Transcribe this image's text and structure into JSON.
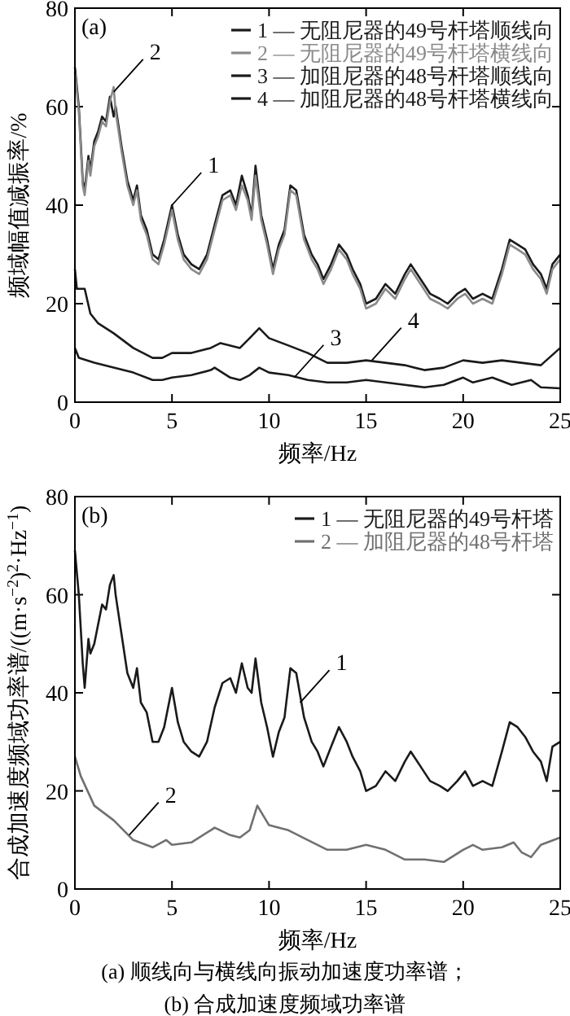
{
  "chart_data": [
    {
      "type": "line",
      "title": "(a)",
      "xlabel": "频率/Hz",
      "ylabel": "频域幅值减振率/%",
      "xlim": [
        0,
        25
      ],
      "xticks": [
        0,
        5,
        10,
        15,
        20,
        25
      ],
      "ylim": [
        0,
        80
      ],
      "yticks": [
        0,
        20,
        40,
        60,
        80
      ],
      "legend": "top right",
      "series": [
        {
          "name": "1 — 无阻尼器的49号杆塔顺线向",
          "color": "#1a1a1a",
          "x": [
            0,
            0.2,
            0.4,
            0.5,
            0.7,
            0.8,
            1.0,
            1.2,
            1.4,
            1.6,
            1.8,
            2.0,
            2.1,
            2.4,
            2.7,
            3.0,
            3.2,
            3.4,
            3.7,
            4.0,
            4.3,
            4.6,
            5.0,
            5.3,
            5.6,
            6.0,
            6.4,
            6.8,
            7.2,
            7.6,
            8.0,
            8.3,
            8.6,
            8.9,
            9.1,
            9.3,
            9.6,
            9.9,
            10.2,
            10.5,
            10.8,
            11.1,
            11.4,
            11.8,
            12.2,
            12.5,
            12.8,
            13.2,
            13.6,
            14.0,
            14.3,
            14.7,
            15.0,
            15.5,
            16.0,
            16.5,
            17.0,
            17.3,
            17.8,
            18.3,
            18.8,
            19.2,
            19.7,
            20.1,
            20.5,
            21.0,
            21.5,
            22.0,
            22.4,
            22.8,
            23.2,
            23.6,
            24.0,
            24.3,
            24.6,
            25.0
          ],
          "values": [
            68,
            60,
            45,
            43,
            50,
            47,
            53,
            55,
            58,
            57,
            62,
            58,
            60,
            52,
            45,
            41,
            44,
            38,
            35,
            30,
            29,
            33,
            40,
            34,
            30,
            28,
            27,
            30,
            36,
            42,
            43,
            40,
            46,
            42,
            38,
            48,
            38,
            33,
            27,
            32,
            35,
            44,
            43,
            34,
            30,
            28,
            25,
            28,
            32,
            30,
            27,
            24,
            20,
            21,
            24,
            22,
            26,
            28,
            25,
            22,
            21,
            20,
            22,
            23,
            21,
            22,
            21,
            27,
            33,
            32,
            31,
            28,
            26,
            23,
            28,
            30
          ]
        },
        {
          "name": "2 — 无阻尼器的49号杆塔横线向",
          "color": "#8a8a8a",
          "x": [
            0,
            0.2,
            0.4,
            0.5,
            0.7,
            0.8,
            1.0,
            1.2,
            1.4,
            1.6,
            1.8,
            2.0,
            2.1,
            2.4,
            2.7,
            3.0,
            3.2,
            3.4,
            3.7,
            4.0,
            4.3,
            4.6,
            5.0,
            5.3,
            5.6,
            6.0,
            6.4,
            6.8,
            7.2,
            7.6,
            8.0,
            8.3,
            8.6,
            8.9,
            9.1,
            9.3,
            9.6,
            9.9,
            10.2,
            10.5,
            10.8,
            11.1,
            11.4,
            11.8,
            12.2,
            12.5,
            12.8,
            13.2,
            13.6,
            14.0,
            14.3,
            14.7,
            15.0,
            15.5,
            16.0,
            16.5,
            17.0,
            17.3,
            17.8,
            18.3,
            18.8,
            19.2,
            19.7,
            20.1,
            20.5,
            21.0,
            21.5,
            22.0,
            22.4,
            22.8,
            23.2,
            23.6,
            24.0,
            24.3,
            24.6,
            25.0
          ],
          "values": [
            67,
            59,
            44,
            42,
            49,
            46,
            52,
            54,
            57,
            56,
            61,
            64,
            59,
            51,
            44,
            40,
            43,
            37,
            34,
            29,
            28,
            32,
            39,
            33,
            29,
            27,
            26,
            29,
            35,
            41,
            42,
            39,
            44,
            41,
            37,
            46,
            37,
            32,
            26,
            31,
            34,
            43,
            42,
            33,
            29,
            27,
            24,
            27,
            31,
            29,
            26,
            23,
            19,
            20,
            23,
            21,
            25,
            27,
            24,
            21,
            20,
            19,
            21,
            22,
            20,
            21,
            20,
            26,
            32,
            31,
            30,
            27,
            25,
            22,
            27,
            29
          ]
        },
        {
          "name": "3 — 加阻尼器的48号杆塔顺线向",
          "color": "#1a1a1a",
          "x": [
            0,
            0.2,
            1,
            2,
            3,
            4,
            4.5,
            5,
            6,
            7,
            7.2,
            8,
            8.5,
            9,
            9.5,
            10,
            11,
            12,
            13,
            14,
            15,
            16,
            17,
            18,
            19,
            20,
            20.5,
            21.5,
            22.5,
            23.5,
            24,
            25
          ],
          "values": [
            11,
            9,
            8,
            7,
            6,
            4.5,
            4.5,
            5,
            5.5,
            6.5,
            7,
            5,
            4.5,
            5.5,
            7,
            6,
            5.5,
            4.5,
            4,
            4,
            4.5,
            4,
            3.5,
            3,
            3.5,
            5,
            4,
            5,
            3.5,
            4.5,
            3,
            2.8
          ]
        },
        {
          "name": "4 — 加阻尼器的48号杆塔横线向",
          "color": "#1a1a1a",
          "x": [
            0,
            0.1,
            0.5,
            0.8,
            1.2,
            2,
            3,
            4,
            4.5,
            5,
            6,
            7,
            7.5,
            8,
            8.5,
            9,
            9.5,
            10,
            11,
            12,
            13,
            14,
            15,
            16,
            17,
            18,
            19,
            20,
            21,
            22,
            23,
            24,
            25
          ],
          "values": [
            27,
            23,
            23,
            18,
            16,
            14,
            11,
            9,
            9,
            10,
            10,
            11,
            12,
            11.5,
            11,
            13,
            15,
            13,
            11.5,
            10,
            8,
            8,
            8.5,
            8,
            7.5,
            6.5,
            7,
            8.5,
            8,
            8.5,
            8,
            7.5,
            11
          ]
        }
      ],
      "annotations": [
        {
          "text": "1",
          "x": 5.0,
          "y": 40
        },
        {
          "text": "2",
          "x": 2.0,
          "y": 63
        },
        {
          "text": "3",
          "x": 11.3,
          "y": 5
        },
        {
          "text": "4",
          "x": 15.3,
          "y": 8.5
        }
      ]
    },
    {
      "type": "line",
      "title": "(b)",
      "xlabel": "频率/Hz",
      "ylabel": "合成加速度频域功率谱/((m·s$^{−2}$)$^{2}$·Hz$^{−1}$)",
      "xlim": [
        0,
        25
      ],
      "xticks": [
        0,
        5,
        10,
        15,
        20,
        25
      ],
      "ylim": [
        0,
        80
      ],
      "yticks": [
        0,
        20,
        40,
        60,
        80
      ],
      "legend": "top right",
      "series": [
        {
          "name": "1 — 无阻尼器的49号杆塔",
          "color": "#1a1a1a",
          "x": [
            0,
            0.2,
            0.4,
            0.5,
            0.7,
            0.8,
            1.0,
            1.2,
            1.4,
            1.6,
            1.8,
            2.0,
            2.1,
            2.4,
            2.7,
            3.0,
            3.2,
            3.4,
            3.7,
            4.0,
            4.3,
            4.6,
            5.0,
            5.3,
            5.6,
            6.0,
            6.4,
            6.8,
            7.2,
            7.6,
            8.0,
            8.3,
            8.6,
            8.9,
            9.1,
            9.3,
            9.6,
            9.9,
            10.2,
            10.5,
            10.8,
            11.1,
            11.4,
            11.8,
            12.2,
            12.5,
            12.8,
            13.2,
            13.6,
            14.0,
            14.3,
            14.7,
            15.0,
            15.5,
            16.0,
            16.5,
            17.0,
            17.3,
            17.8,
            18.3,
            18.8,
            19.2,
            19.7,
            20.1,
            20.5,
            21.0,
            21.5,
            22.0,
            22.4,
            22.8,
            23.2,
            23.6,
            24.0,
            24.3,
            24.6,
            25.0
          ],
          "values": [
            69,
            60,
            46,
            41,
            51,
            48,
            50,
            54,
            58,
            57,
            62,
            64,
            60,
            52,
            44,
            41,
            45,
            38,
            36,
            30,
            30,
            33,
            41,
            34,
            30,
            28,
            27,
            30,
            37,
            42,
            43,
            40,
            46,
            41,
            40,
            47,
            38,
            33,
            27,
            32,
            35,
            45,
            44,
            35,
            30,
            28,
            25,
            29,
            33,
            30,
            27,
            24,
            20,
            21,
            24,
            22,
            26,
            28,
            25,
            22,
            21,
            20,
            22,
            24,
            21,
            22,
            21,
            28,
            34,
            33,
            31,
            28,
            26,
            22,
            29,
            30
          ]
        },
        {
          "name": "2 — 加阻尼器的48号杆塔",
          "color": "#707070",
          "x": [
            0,
            0.3,
            1,
            2,
            3,
            4,
            4.7,
            5,
            6,
            7,
            7.2,
            8,
            8.5,
            9,
            9.4,
            10,
            11,
            12,
            13,
            14,
            15,
            16,
            17,
            18,
            19,
            20,
            20.5,
            21,
            22,
            22.6,
            23,
            23.5,
            24,
            25
          ],
          "values": [
            27,
            23,
            17,
            14,
            10,
            8.5,
            10,
            9,
            9.5,
            12,
            12.5,
            11,
            10.5,
            12,
            17,
            13,
            12,
            10,
            8,
            8,
            9,
            8,
            6,
            6,
            5.5,
            8,
            9,
            8,
            8.5,
            9.5,
            7.5,
            6.5,
            9,
            10.5
          ]
        }
      ],
      "annotations": [
        {
          "text": "1",
          "x": 11.6,
          "y": 38
        },
        {
          "text": "2",
          "x": 2.8,
          "y": 11
        },
        "(a) 顺线向与横线向振动加速度功率谱；",
        "(b) 合成加速度频域功率谱"
      ]
    }
  ]
}
